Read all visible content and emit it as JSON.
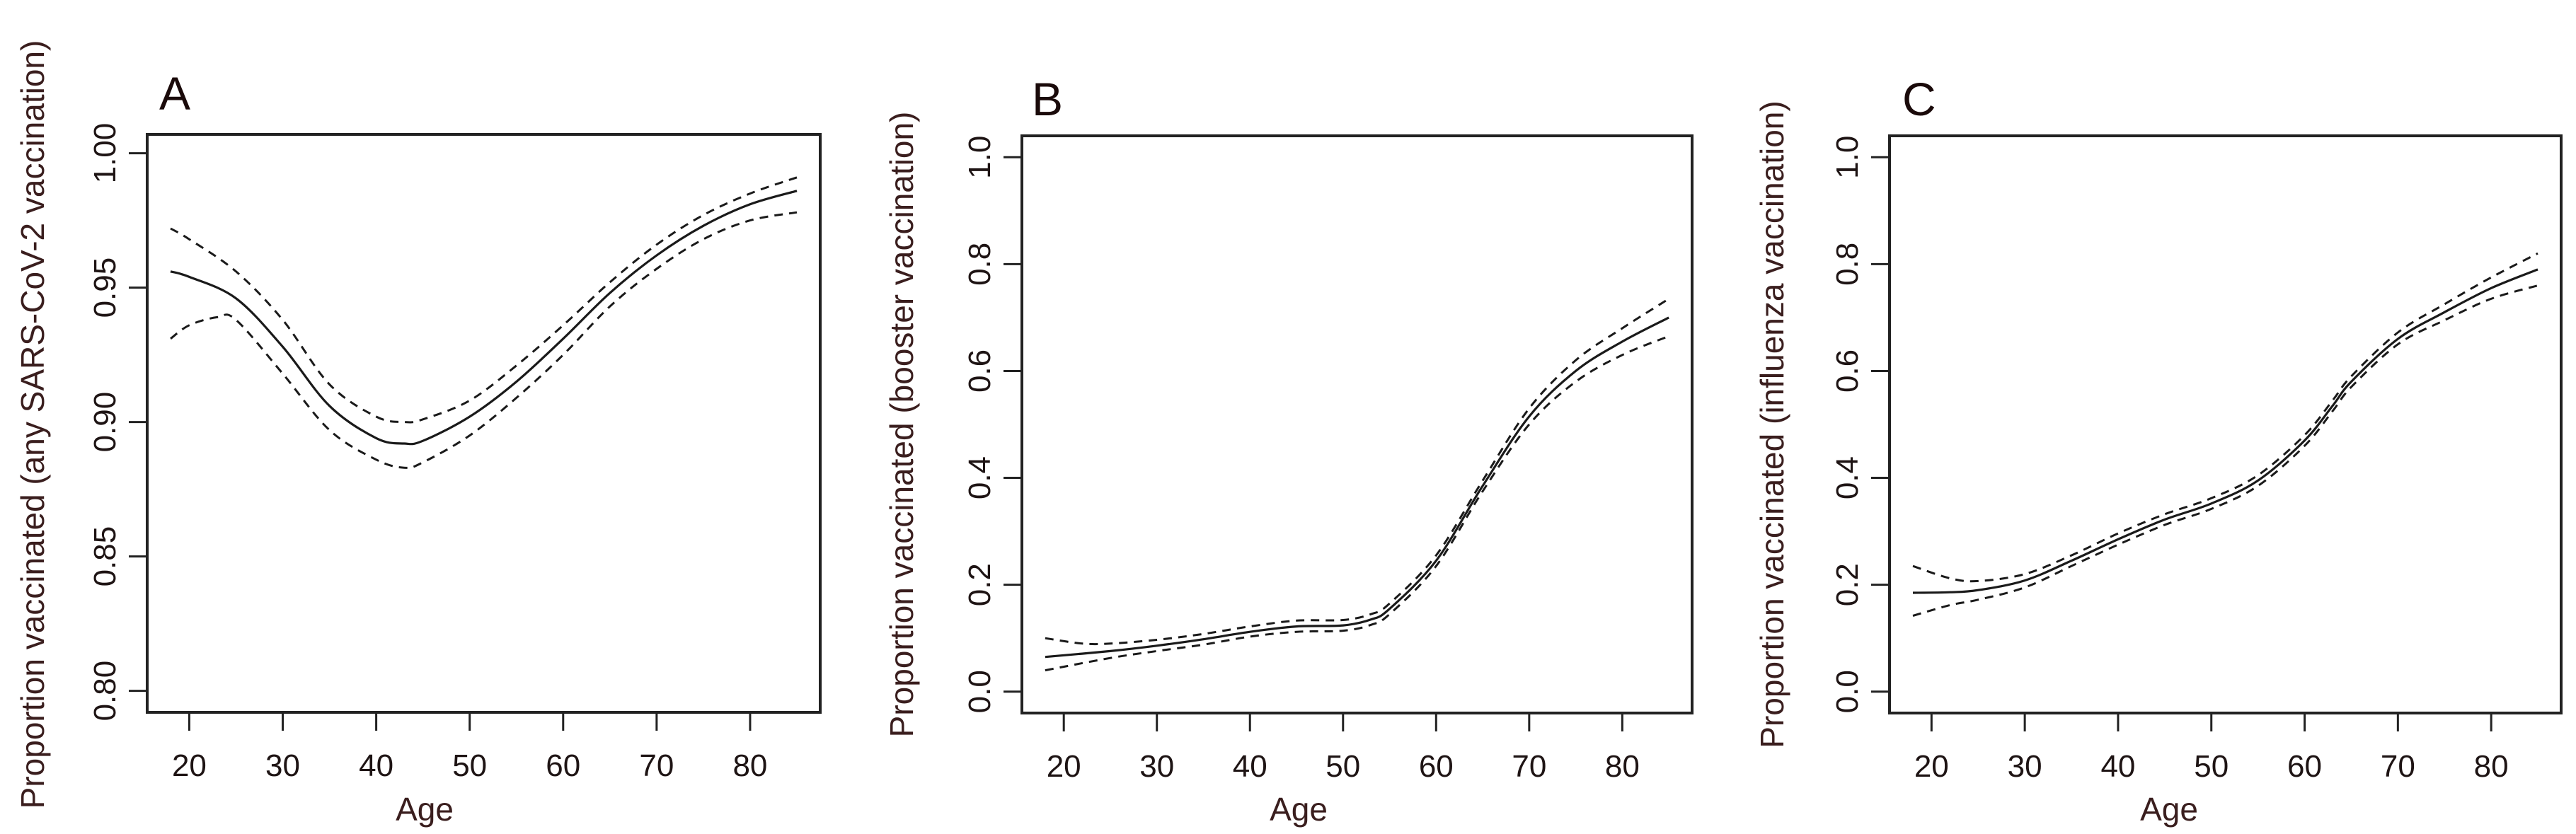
{
  "chart_data": [
    {
      "type": "line",
      "panel": "A",
      "title": "A",
      "xlabel": "Age",
      "ylabel": "Proportion vaccinated (any SARS-CoV-2 vaccination)",
      "xlim": [
        15.5,
        87.5
      ],
      "ylim": [
        0.792,
        1.007
      ],
      "xticks": [
        20,
        30,
        40,
        50,
        60,
        70,
        80
      ],
      "yticks": [
        0.8,
        0.85,
        0.9,
        0.95,
        1.0
      ],
      "ytick_labels": [
        "0.80",
        "0.85",
        "0.90",
        "0.95",
        "1.00"
      ],
      "grid": false,
      "series": [
        {
          "name": "estimate",
          "style": "solid",
          "x": [
            18,
            20,
            25,
            30,
            35,
            40,
            43,
            45,
            50,
            55,
            60,
            65,
            70,
            75,
            80,
            85
          ],
          "values": [
            0.956,
            0.954,
            0.946,
            0.928,
            0.906,
            0.894,
            0.892,
            0.893,
            0.902,
            0.915,
            0.931,
            0.948,
            0.962,
            0.973,
            0.981,
            0.986
          ]
        },
        {
          "name": "upper 95% CI",
          "style": "dashed",
          "x": [
            18,
            20,
            25,
            30,
            35,
            40,
            43,
            45,
            50,
            55,
            60,
            65,
            70,
            75,
            80,
            85
          ],
          "values": [
            0.972,
            0.968,
            0.956,
            0.938,
            0.914,
            0.902,
            0.9,
            0.901,
            0.908,
            0.921,
            0.936,
            0.952,
            0.966,
            0.977,
            0.985,
            0.991
          ]
        },
        {
          "name": "lower 95% CI",
          "style": "dashed",
          "x": [
            18,
            20,
            23,
            25,
            30,
            35,
            40,
            43,
            45,
            50,
            55,
            60,
            65,
            70,
            75,
            80,
            85
          ],
          "values": [
            0.931,
            0.936,
            0.939,
            0.938,
            0.918,
            0.897,
            0.886,
            0.883,
            0.885,
            0.895,
            0.909,
            0.925,
            0.943,
            0.957,
            0.968,
            0.975,
            0.978
          ]
        }
      ]
    },
    {
      "type": "line",
      "panel": "B",
      "title": "B",
      "xlabel": "Age",
      "ylabel": "Proportion vaccinated (booster vaccination)",
      "xlim": [
        15.5,
        87.5
      ],
      "ylim": [
        -0.04,
        1.04
      ],
      "xticks": [
        20,
        30,
        40,
        50,
        60,
        70,
        80
      ],
      "yticks": [
        0.0,
        0.2,
        0.4,
        0.6,
        0.8,
        1.0
      ],
      "ytick_labels": [
        "0.0",
        "0.2",
        "0.4",
        "0.6",
        "0.8",
        "1.0"
      ],
      "grid": false,
      "series": [
        {
          "name": "estimate",
          "style": "solid",
          "x": [
            18,
            25,
            30,
            35,
            40,
            45,
            50,
            53,
            55,
            60,
            65,
            70,
            75,
            80,
            85
          ],
          "values": [
            0.065,
            0.076,
            0.086,
            0.098,
            0.112,
            0.122,
            0.124,
            0.135,
            0.155,
            0.245,
            0.385,
            0.515,
            0.6,
            0.655,
            0.7
          ]
        },
        {
          "name": "upper 95% CI",
          "style": "dashed",
          "x": [
            18,
            22,
            25,
            30,
            35,
            40,
            45,
            50,
            53,
            55,
            60,
            65,
            70,
            75,
            80,
            85
          ],
          "values": [
            0.1,
            0.09,
            0.09,
            0.097,
            0.108,
            0.122,
            0.133,
            0.134,
            0.145,
            0.165,
            0.255,
            0.395,
            0.53,
            0.62,
            0.68,
            0.735
          ]
        },
        {
          "name": "lower 95% CI",
          "style": "dashed",
          "x": [
            18,
            25,
            30,
            35,
            40,
            45,
            50,
            53,
            55,
            60,
            65,
            70,
            75,
            80,
            85
          ],
          "values": [
            0.04,
            0.063,
            0.076,
            0.088,
            0.103,
            0.112,
            0.114,
            0.125,
            0.145,
            0.235,
            0.375,
            0.5,
            0.58,
            0.63,
            0.665
          ]
        }
      ]
    },
    {
      "type": "line",
      "panel": "C",
      "title": "C",
      "xlabel": "Age",
      "ylabel": "Proportion vaccinated (influenza vaccination)",
      "xlim": [
        15.5,
        87.5
      ],
      "ylim": [
        -0.04,
        1.04
      ],
      "xticks": [
        20,
        30,
        40,
        50,
        60,
        70,
        80
      ],
      "yticks": [
        0.0,
        0.2,
        0.4,
        0.6,
        0.8,
        1.0
      ],
      "ytick_labels": [
        "0.0",
        "0.2",
        "0.4",
        "0.6",
        "0.8",
        "1.0"
      ],
      "grid": false,
      "series": [
        {
          "name": "estimate",
          "style": "solid",
          "x": [
            18,
            22,
            25,
            30,
            35,
            40,
            45,
            50,
            55,
            60,
            63,
            65,
            70,
            75,
            80,
            85
          ],
          "values": [
            0.185,
            0.186,
            0.19,
            0.208,
            0.245,
            0.285,
            0.322,
            0.352,
            0.395,
            0.47,
            0.535,
            0.58,
            0.66,
            0.71,
            0.755,
            0.79
          ]
        },
        {
          "name": "upper 95% CI",
          "style": "dashed",
          "x": [
            18,
            22,
            25,
            30,
            35,
            40,
            45,
            50,
            55,
            60,
            63,
            65,
            70,
            75,
            80,
            85
          ],
          "values": [
            0.235,
            0.212,
            0.207,
            0.22,
            0.255,
            0.296,
            0.332,
            0.362,
            0.405,
            0.48,
            0.545,
            0.59,
            0.672,
            0.725,
            0.775,
            0.82
          ]
        },
        {
          "name": "lower 95% CI",
          "style": "dashed",
          "x": [
            18,
            22,
            25,
            30,
            35,
            40,
            45,
            50,
            55,
            60,
            63,
            65,
            70,
            75,
            80,
            85
          ],
          "values": [
            0.142,
            0.162,
            0.172,
            0.195,
            0.235,
            0.275,
            0.312,
            0.342,
            0.385,
            0.46,
            0.525,
            0.57,
            0.65,
            0.695,
            0.735,
            0.76
          ]
        }
      ]
    }
  ],
  "panels": [
    {
      "letter": "A",
      "xlabel": "Age",
      "ylabel": "Proportion vaccinated (any SARS-CoV-2 vaccination)"
    },
    {
      "letter": "B",
      "xlabel": "Age",
      "ylabel": "Proportion vaccinated (booster vaccination)"
    },
    {
      "letter": "C",
      "xlabel": "Age",
      "ylabel": "Proportion vaccinated (influenza vaccination)"
    }
  ],
  "colors": {
    "line": "#1a1a1a",
    "frame": "#222222",
    "text": "#1e1414",
    "axis_title": "#3a1e1e",
    "background": "#ffffff"
  }
}
